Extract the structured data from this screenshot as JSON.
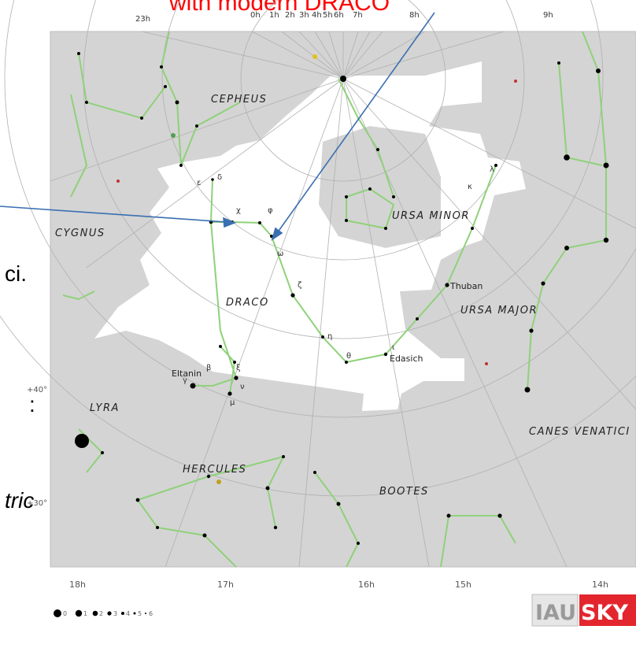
{
  "slide": {
    "title_fragment": "with modern DRACO",
    "title_color": "#ff0000",
    "side_text": {
      "ci": "ci.",
      "colon": ":",
      "tric": "tric"
    }
  },
  "map": {
    "background_gray": "#d4d4d4",
    "draco_region_color": "#ffffff",
    "stick_figure_color": "#8fd17a",
    "arrow_color": "#3a6fb0",
    "ra_top_labels": [
      "23h",
      "0h",
      "1h",
      "2h",
      "3h",
      "4h",
      "5h",
      "6h",
      "7h",
      "8h",
      "9h"
    ],
    "ra_bottom_labels": [
      "18h",
      "17h",
      "16h",
      "15h",
      "14h"
    ],
    "dec_labels": [
      "+40°",
      "+30°"
    ],
    "constellations": [
      "CEPHEUS",
      "URSA MINOR",
      "CYGNUS",
      "DRACO",
      "URSA MAJOR",
      "LYRA",
      "CANES VENATICI",
      "HERCULES",
      "BOOTES"
    ],
    "stars_named": [
      "Thuban",
      "Eltanin",
      "Edasich"
    ],
    "greek_labels": [
      "ι",
      "κ",
      "λ",
      "ζ",
      "η",
      "δ",
      "χ",
      "φ",
      "ε",
      "ξ",
      "β",
      "γ",
      "μ",
      "ν",
      "ω",
      "θ"
    ],
    "legend": {
      "magnitudes": [
        "0",
        "1",
        "2",
        "3",
        "4",
        "5",
        "6"
      ]
    },
    "logo": {
      "left_text": "IAU",
      "right_text": "SKY",
      "right_bg": "#e3262e"
    }
  }
}
